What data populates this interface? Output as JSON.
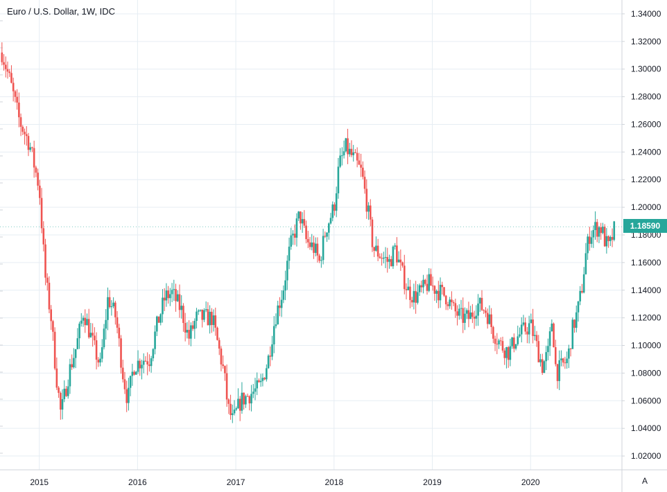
{
  "header": {
    "title": "Euro / U.S. Dollar, 1W, IDC"
  },
  "last_price_label": "1.18590",
  "auto_scale_label": "A",
  "colors": {
    "up": "#26a69a",
    "down": "#ef5350",
    "grid": "#e6edf3",
    "text": "#131722",
    "axis": "#cfd3d9"
  },
  "chart_data": {
    "type": "candlestick",
    "title": "Euro / U.S. Dollar, 1W, IDC",
    "xlabel": "",
    "ylabel": "",
    "ylim": [
      1.01,
      1.35
    ],
    "xlim": [
      2014.6,
      2020.93
    ],
    "x_ticks": [
      "2015",
      "2016",
      "2017",
      "2018",
      "2019",
      "2020"
    ],
    "x_tick_values": [
      2015,
      2016,
      2017,
      2018,
      2019,
      2020
    ],
    "y_ticks": [
      "1.02000",
      "1.04000",
      "1.06000",
      "1.08000",
      "1.10000",
      "1.12000",
      "1.14000",
      "1.16000",
      "1.18000",
      "1.20000",
      "1.22000",
      "1.24000",
      "1.26000",
      "1.28000",
      "1.30000",
      "1.32000",
      "1.34000"
    ],
    "y_tick_values": [
      1.02,
      1.04,
      1.06,
      1.08,
      1.1,
      1.12,
      1.14,
      1.16,
      1.18,
      1.2,
      1.22,
      1.24,
      1.26,
      1.28,
      1.3,
      1.32,
      1.34
    ],
    "last_price": 1.1859,
    "close_path": [
      [
        2014.62,
        1.312
      ],
      [
        2014.7,
        1.292
      ],
      [
        2014.8,
        1.262
      ],
      [
        2014.9,
        1.246
      ],
      [
        2015.0,
        1.214
      ],
      [
        2015.06,
        1.15
      ],
      [
        2015.12,
        1.12
      ],
      [
        2015.17,
        1.08
      ],
      [
        2015.22,
        1.05
      ],
      [
        2015.3,
        1.08
      ],
      [
        2015.38,
        1.1
      ],
      [
        2015.45,
        1.125
      ],
      [
        2015.55,
        1.1
      ],
      [
        2015.62,
        1.085
      ],
      [
        2015.7,
        1.135
      ],
      [
        2015.78,
        1.12
      ],
      [
        2015.85,
        1.08
      ],
      [
        2015.9,
        1.06
      ],
      [
        2015.96,
        1.085
      ],
      [
        2016.05,
        1.09
      ],
      [
        2016.12,
        1.09
      ],
      [
        2016.2,
        1.115
      ],
      [
        2016.28,
        1.135
      ],
      [
        2016.35,
        1.138
      ],
      [
        2016.45,
        1.125
      ],
      [
        2016.52,
        1.105
      ],
      [
        2016.6,
        1.12
      ],
      [
        2016.68,
        1.12
      ],
      [
        2016.76,
        1.12
      ],
      [
        2016.82,
        1.1
      ],
      [
        2016.88,
        1.08
      ],
      [
        2016.92,
        1.055
      ],
      [
        2016.97,
        1.045
      ],
      [
        2017.05,
        1.06
      ],
      [
        2017.15,
        1.065
      ],
      [
        2017.25,
        1.07
      ],
      [
        2017.33,
        1.09
      ],
      [
        2017.4,
        1.12
      ],
      [
        2017.48,
        1.14
      ],
      [
        2017.55,
        1.17
      ],
      [
        2017.65,
        1.195
      ],
      [
        2017.72,
        1.175
      ],
      [
        2017.8,
        1.17
      ],
      [
        2017.85,
        1.16
      ],
      [
        2017.92,
        1.185
      ],
      [
        2018.0,
        1.2
      ],
      [
        2018.05,
        1.23
      ],
      [
        2018.12,
        1.243
      ],
      [
        2018.2,
        1.235
      ],
      [
        2018.28,
        1.225
      ],
      [
        2018.34,
        1.2
      ],
      [
        2018.4,
        1.17
      ],
      [
        2018.48,
        1.165
      ],
      [
        2018.56,
        1.16
      ],
      [
        2018.62,
        1.17
      ],
      [
        2018.68,
        1.155
      ],
      [
        2018.75,
        1.14
      ],
      [
        2018.82,
        1.135
      ],
      [
        2018.9,
        1.14
      ],
      [
        2018.96,
        1.145
      ],
      [
        2019.05,
        1.14
      ],
      [
        2019.15,
        1.135
      ],
      [
        2019.22,
        1.125
      ],
      [
        2019.3,
        1.12
      ],
      [
        2019.38,
        1.12
      ],
      [
        2019.46,
        1.13
      ],
      [
        2019.55,
        1.125
      ],
      [
        2019.62,
        1.11
      ],
      [
        2019.7,
        1.1
      ],
      [
        2019.78,
        1.095
      ],
      [
        2019.85,
        1.105
      ],
      [
        2019.92,
        1.11
      ],
      [
        2020.0,
        1.115
      ],
      [
        2020.06,
        1.1
      ],
      [
        2020.12,
        1.085
      ],
      [
        2020.18,
        1.095
      ],
      [
        2020.22,
        1.12
      ],
      [
        2020.26,
        1.08
      ],
      [
        2020.32,
        1.085
      ],
      [
        2020.38,
        1.09
      ],
      [
        2020.42,
        1.11
      ],
      [
        2020.48,
        1.125
      ],
      [
        2020.52,
        1.14
      ],
      [
        2020.56,
        1.165
      ],
      [
        2020.6,
        1.18
      ],
      [
        2020.66,
        1.185
      ],
      [
        2020.72,
        1.185
      ],
      [
        2020.76,
        1.175
      ],
      [
        2020.8,
        1.17
      ],
      [
        2020.86,
        1.1859
      ]
    ]
  }
}
